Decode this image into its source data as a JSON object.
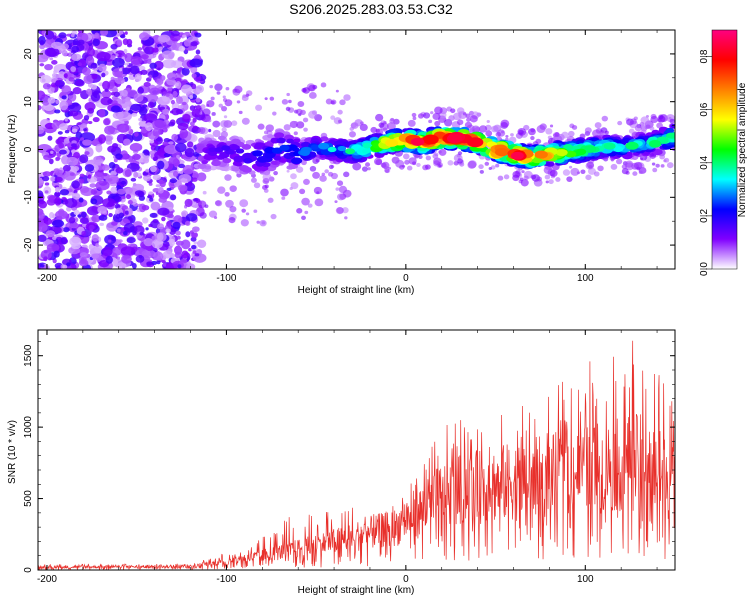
{
  "title": "S206.2025.283.03.53.C32",
  "chart_data": [
    {
      "type": "heatmap",
      "title": "S206.2025.283.03.53.C32",
      "xlabel": "Height of straight line (km)",
      "ylabel": "Frequency (Hz)",
      "xlim": [
        -205,
        150
      ],
      "ylim": [
        -25,
        25
      ],
      "xticks": [
        -200,
        -100,
        0,
        100
      ],
      "yticks": [
        -20,
        -10,
        0,
        10,
        20
      ],
      "colorbar": {
        "label": "Normalized spectral amplitude",
        "range": [
          0,
          0.9
        ],
        "ticks": [
          0.0,
          0.2,
          0.4,
          0.6,
          0.8
        ],
        "colors": [
          "#ffffff",
          "#8000ff",
          "#0000ff",
          "#00ffff",
          "#00ff00",
          "#ffff00",
          "#ff8000",
          "#ff0000",
          "#ff0080"
        ]
      },
      "noise_region": {
        "x": [
          -205,
          -115
        ],
        "f": [
          -25,
          25
        ],
        "amplitude": 0.15
      },
      "ridge": {
        "x": [
          -115,
          -100,
          -90,
          -80,
          -70,
          -60,
          -50,
          -40,
          -30,
          -20,
          -10,
          0,
          10,
          20,
          30,
          40,
          50,
          60,
          70,
          80,
          90,
          100,
          110,
          120,
          130,
          140,
          150
        ],
        "f": [
          -1.0,
          -0.5,
          -1.5,
          -1.5,
          0.5,
          -1.0,
          0.5,
          0.0,
          -0.5,
          0.5,
          1.5,
          2.0,
          1.5,
          2.5,
          2.5,
          1.5,
          0.0,
          -1.0,
          -1.5,
          -1.0,
          -0.5,
          0.0,
          0.5,
          0.5,
          1.0,
          1.5,
          3.0
        ],
        "amplitude": [
          0.15,
          0.2,
          0.2,
          0.25,
          0.25,
          0.3,
          0.3,
          0.35,
          0.4,
          0.5,
          0.7,
          0.8,
          0.85,
          0.9,
          0.9,
          0.8,
          0.85,
          0.9,
          0.8,
          0.7,
          0.6,
          0.5,
          0.4,
          0.4,
          0.4,
          0.45,
          0.5
        ]
      }
    },
    {
      "type": "line",
      "xlabel": "Height of straight line (km)",
      "ylabel": "SNR (10 * v/v)",
      "xlim": [
        -205,
        150
      ],
      "ylim": [
        0,
        1680
      ],
      "xticks": [
        -200,
        -100,
        0,
        100
      ],
      "yticks": [
        0,
        500,
        1000,
        1500
      ],
      "color": "#e8302b",
      "envelope": {
        "x": [
          -205,
          -120,
          -100,
          -80,
          -60,
          -40,
          -20,
          -5,
          0,
          10,
          20,
          30,
          40,
          60,
          80,
          100,
          120,
          130,
          140,
          150
        ],
        "mean": [
          20,
          25,
          60,
          100,
          150,
          200,
          260,
          300,
          360,
          420,
          520,
          560,
          580,
          620,
          660,
          700,
          740,
          760,
          700,
          600
        ],
        "peak": [
          40,
          45,
          120,
          230,
          420,
          430,
          450,
          480,
          560,
          800,
          1000,
          1050,
          1080,
          1150,
          1250,
          1450,
          1600,
          1650,
          1550,
          1200
        ]
      }
    }
  ]
}
